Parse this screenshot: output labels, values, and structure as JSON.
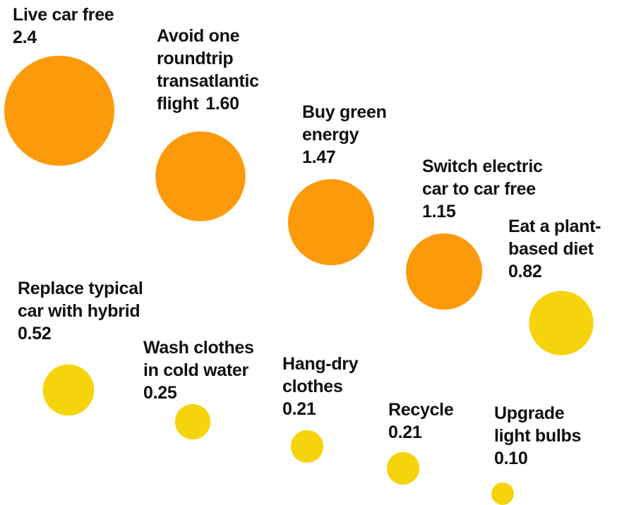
{
  "chart_data": {
    "type": "bubble",
    "categories": [
      "Live car free",
      "Avoid one\nroundtrip\ntransatlantic\nflight",
      "Buy green\nenergy",
      "Switch electric\ncar to car free",
      "Eat a plant-\nbased diet",
      "Replace typical\ncar with hybrid",
      "Wash clothes\nin cold water",
      "Hang-dry\nclothes",
      "Recycle",
      "Upgrade\nlight bulbs"
    ],
    "values": [
      2.4,
      1.6,
      1.47,
      1.15,
      0.82,
      0.52,
      0.25,
      0.21,
      0.21,
      0.1
    ],
    "value_labels": [
      "2.4",
      "1.60",
      "1.47",
      "1.15",
      "0.82",
      "0.52",
      "0.25",
      "0.21",
      "0.21",
      "0.10"
    ],
    "colors": [
      "#fd9a0b",
      "#fd9a0b",
      "#fd9a0b",
      "#fd9a0b",
      "#f6d40c",
      "#f6d40c",
      "#f6d40c",
      "#f6d40c",
      "#f6d40c",
      "#f6d40c"
    ]
  }
}
